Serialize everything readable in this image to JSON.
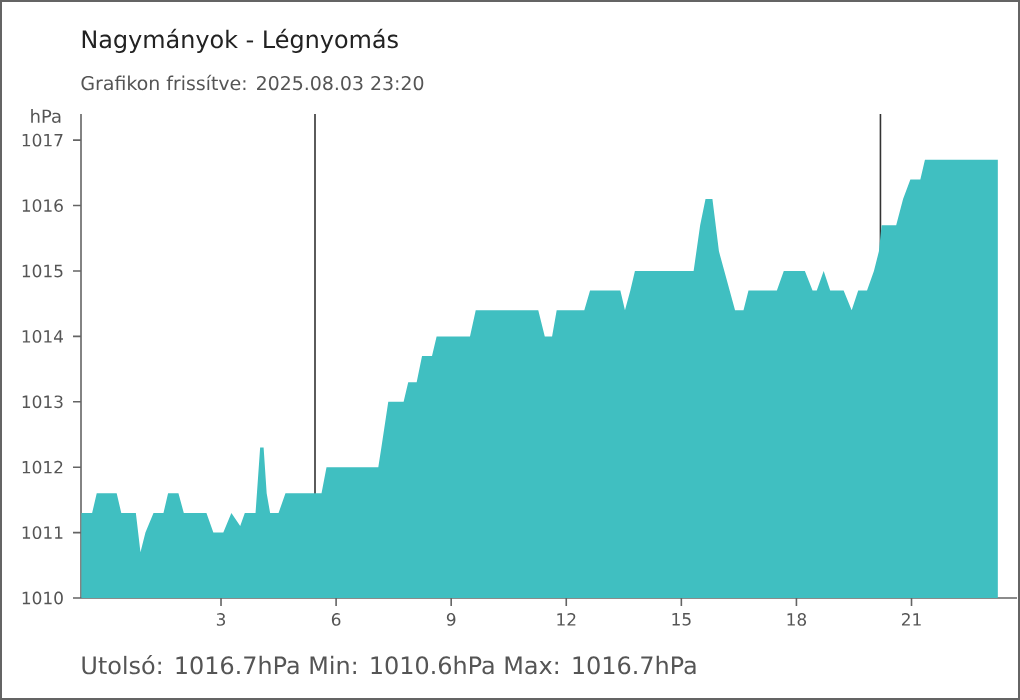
{
  "chart_data": {
    "type": "area",
    "title": "Nagymányok - Légnyomás",
    "subtitle": "Grafikon frissítve: 2025.08.03 23:20",
    "ylabel": "hPa",
    "annotations": [
      "Utolsó: 1016.7hPa  Min: 1010.6hPa  Max: 1016.7hPa"
    ],
    "series": [
      {
        "color": "#40bfc1",
        "x": [
          -0.64,
          -0.36,
          -0.24,
          0.28,
          0.4,
          0.78,
          0.9,
          1.03,
          1.24,
          1.5,
          1.62,
          1.89,
          2.03,
          2.62,
          2.8,
          3.06,
          3.27,
          3.5,
          3.62,
          3.9,
          4.02,
          4.11,
          4.19,
          4.28,
          4.5,
          4.68,
          5.62,
          5.75,
          7.1,
          7.18,
          7.36,
          7.76,
          7.88,
          8.1,
          8.24,
          8.5,
          8.62,
          9.49,
          9.64,
          11.27,
          11.44,
          11.63,
          11.75,
          12.47,
          12.62,
          13.41,
          13.53,
          13.67,
          13.79,
          15.32,
          15.49,
          15.63,
          15.81,
          15.98,
          16.12,
          16.4,
          16.62,
          16.75,
          17.49,
          17.67,
          18.22,
          18.42,
          18.53,
          18.71,
          18.88,
          19.23,
          19.44,
          19.61,
          19.84,
          20.02,
          20.15,
          20.22,
          20.6,
          20.78,
          20.97,
          21.23,
          21.35,
          23.25
        ],
        "values": [
          1011.3,
          1011.3,
          1011.6,
          1011.6,
          1011.3,
          1011.3,
          1010.7,
          1011.0,
          1011.3,
          1011.3,
          1011.6,
          1011.6,
          1011.3,
          1011.3,
          1011.0,
          1011.0,
          1011.3,
          1011.1,
          1011.3,
          1011.3,
          1012.3,
          1012.3,
          1011.6,
          1011.3,
          1011.3,
          1011.6,
          1011.6,
          1012.0,
          1012.0,
          1012.3,
          1013.0,
          1013.0,
          1013.3,
          1013.3,
          1013.7,
          1013.7,
          1014.0,
          1014.0,
          1014.4,
          1014.4,
          1014.0,
          1014.0,
          1014.4,
          1014.4,
          1014.7,
          1014.7,
          1014.4,
          1014.7,
          1015.0,
          1015.0,
          1015.7,
          1016.1,
          1016.1,
          1015.3,
          1015.0,
          1014.4,
          1014.4,
          1014.7,
          1014.7,
          1015.0,
          1015.0,
          1014.7,
          1014.7,
          1015.0,
          1014.7,
          1014.7,
          1014.4,
          1014.7,
          1014.7,
          1015.0,
          1015.3,
          1015.7,
          1015.7,
          1016.1,
          1016.4,
          1016.4,
          1016.7,
          1016.7
        ]
      }
    ],
    "xlim": [
      -0.65,
      23.75
    ],
    "ylim": [
      1010,
      1017.4
    ],
    "xticks": [
      3,
      6,
      9,
      12,
      15,
      18,
      21
    ],
    "yticks": [
      1010,
      1011,
      1012,
      1013,
      1014,
      1015,
      1016,
      1017
    ],
    "ref_lines": [
      {
        "axis": "x",
        "value": 5.45,
        "color": "#333333"
      },
      {
        "axis": "x",
        "value": 20.19,
        "color": "#333333"
      }
    ],
    "grid": false
  }
}
